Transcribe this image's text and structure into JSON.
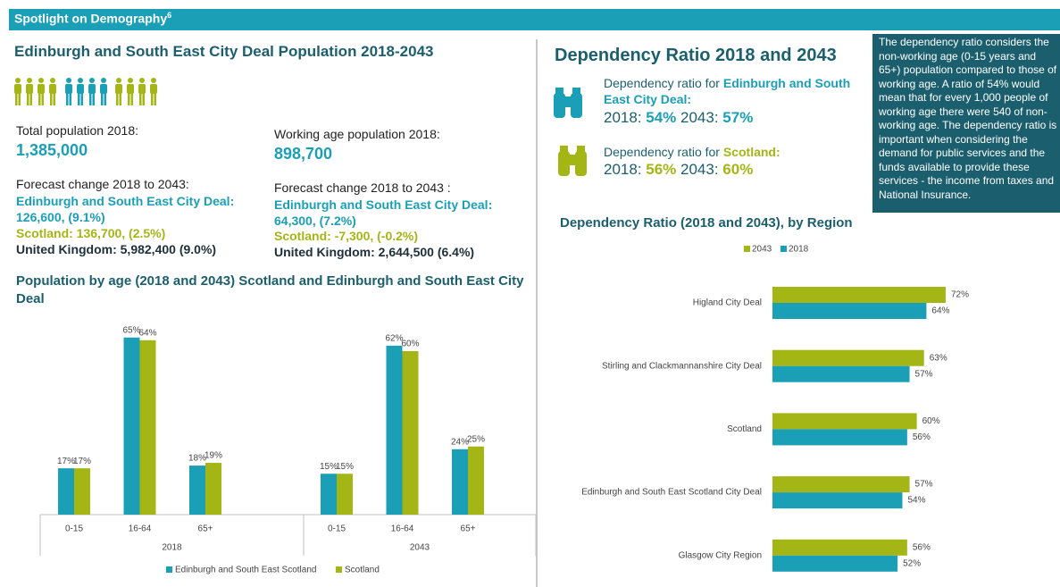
{
  "header": {
    "title": "Spotlight on Demography",
    "superscript": "6"
  },
  "population": {
    "title": "Edinburgh and South East City Deal Population 2018-2043",
    "total_label": "Total population 2018:",
    "total_value": "1,385,000",
    "forecast_label": "Forecast change 2018 to 2043:",
    "esec_label": "Edinburgh and South East City Deal:",
    "esec_value": "126,600, (9.1%)",
    "scotland": "Scotland: 136,700, (2.5%)",
    "uk": "United Kingdom: 5,982,400 (9.0%)"
  },
  "working": {
    "label": "Working age population 2018:",
    "value": "898,700",
    "forecast_label": "Forecast change 2018 to 2043 :",
    "esec": "Edinburgh and South East City Deal: 64,300, (7.2%)",
    "scotland": "Scotland: -7,300, (-0.2%)",
    "uk": "United Kingdom: 2,644,500 (6.4%)"
  },
  "dependency": {
    "title": "Dependency Ratio 2018 and 2043",
    "esec": {
      "prefix": "Dependency ratio for ",
      "name": "Edinburgh and South East City Deal:",
      "label_2018": "2018: ",
      "value_2018": "54%",
      "label_2043": " 2043: ",
      "value_2043": "57%"
    },
    "scotland": {
      "prefix": "Dependency ratio for ",
      "name": "Scotland:",
      "label_2018": "2018: ",
      "value_2018": "56%",
      "label_2043": " 2043: ",
      "value_2043": "60%"
    },
    "note": "The dependency ratio considers the non-working age (0-15 years and 65+) population compared to those of working age. A ratio of 54% would mean that for every 1,000 people of working age there were 540 of non-working age. The dependency ratio is important when considering the demand for public services and the funds available to provide these services - the income from taxes and National Insurance."
  },
  "chart_data": [
    {
      "type": "bar",
      "title": "Population by age (2018 and 2043) Scotland and Edinburgh and South East City Deal",
      "groups": [
        "2018",
        "2043"
      ],
      "categories": [
        "0-15",
        "16-64",
        "65+",
        "0-15",
        "16-64",
        "65+"
      ],
      "series": [
        {
          "name": "Edinburgh and South East Scotland",
          "color": "#1b9fb6",
          "values": [
            17,
            65,
            18,
            15,
            62,
            24
          ],
          "value_labels": [
            "17%",
            "65%",
            "18%",
            "15%",
            "62%",
            "24%"
          ]
        },
        {
          "name": "Scotland",
          "color": "#a4b616",
          "values": [
            17,
            64,
            19,
            15,
            60,
            25
          ],
          "value_labels": [
            "17%",
            "64%",
            "19%",
            "15%",
            "60%",
            "25%"
          ]
        }
      ]
    },
    {
      "type": "hbar",
      "title": "Dependency Ratio (2018 and 2043), by Region",
      "categories": [
        "Higland City Deal",
        "Stirling and Clackmannanshire City Deal",
        "Scotland",
        "Edinburgh and South East Scotland City Deal",
        "Glasgow City Region"
      ],
      "series": [
        {
          "name": "2043",
          "color": "#a4b616",
          "values": [
            72,
            63,
            60,
            57,
            56
          ],
          "value_labels": [
            "72%",
            "63%",
            "60%",
            "57%",
            "56%"
          ]
        },
        {
          "name": "2018",
          "color": "#1b9fb6",
          "values": [
            64,
            57,
            56,
            54,
            52
          ],
          "value_labels": [
            "64%",
            "57%",
            "56%",
            "54%",
            "52%"
          ]
        }
      ]
    }
  ]
}
